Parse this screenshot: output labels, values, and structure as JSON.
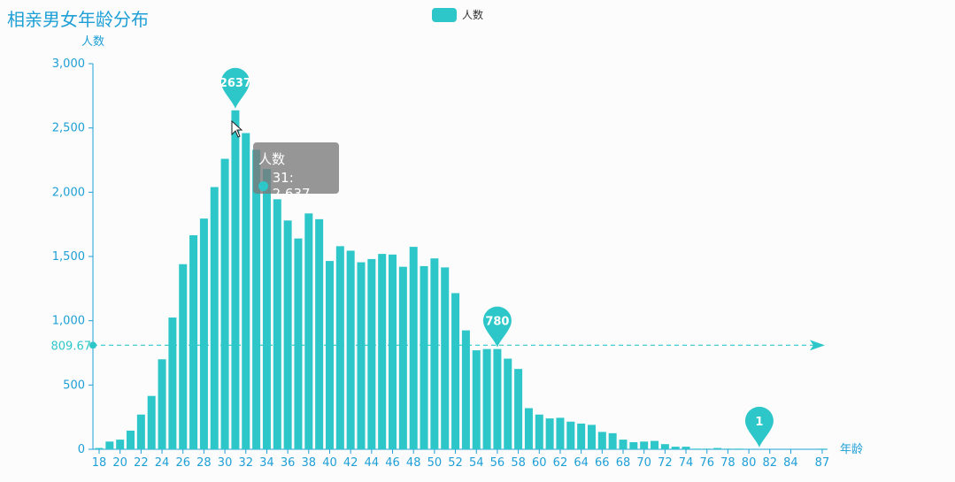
{
  "chart_data": {
    "type": "bar",
    "title": "相亲男女年龄分布",
    "xlabel": "年龄",
    "ylabel": "人数",
    "ylim": [
      0,
      3000
    ],
    "yticks": [
      "0",
      "500",
      "1,000",
      "1,500",
      "2,000",
      "2,500",
      "3,000"
    ],
    "xtick_labels": [
      "18",
      "20",
      "22",
      "24",
      "26",
      "28",
      "30",
      "32",
      "34",
      "36",
      "38",
      "40",
      "42",
      "44",
      "46",
      "48",
      "50",
      "52",
      "54",
      "56",
      "58",
      "60",
      "62",
      "64",
      "66",
      "68",
      "70",
      "72",
      "74",
      "76",
      "78",
      "80",
      "82",
      "84",
      "87"
    ],
    "categories": [
      18,
      19,
      20,
      21,
      22,
      23,
      24,
      25,
      26,
      27,
      28,
      29,
      30,
      31,
      32,
      33,
      34,
      35,
      36,
      37,
      38,
      39,
      40,
      41,
      42,
      43,
      44,
      45,
      46,
      47,
      48,
      49,
      50,
      51,
      52,
      53,
      54,
      55,
      56,
      57,
      58,
      59,
      60,
      61,
      62,
      63,
      64,
      65,
      66,
      67,
      68,
      69,
      70,
      71,
      72,
      73,
      74,
      75,
      76,
      77,
      78,
      79,
      80,
      81,
      82,
      83,
      84,
      85,
      86,
      87
    ],
    "series": [
      {
        "name": "人数",
        "values": [
          10,
          60,
          75,
          145,
          270,
          415,
          700,
          1025,
          1440,
          1665,
          1795,
          2040,
          2260,
          2637,
          2460,
          2330,
          2180,
          1945,
          1780,
          1640,
          1835,
          1790,
          1465,
          1580,
          1545,
          1455,
          1480,
          1520,
          1515,
          1420,
          1575,
          1425,
          1485,
          1415,
          1215,
          925,
          770,
          780,
          780,
          705,
          625,
          320,
          270,
          240,
          245,
          215,
          200,
          190,
          135,
          125,
          75,
          55,
          60,
          65,
          40,
          20,
          20,
          5,
          5,
          10,
          5,
          5,
          2,
          1,
          0,
          0,
          0,
          0,
          0,
          5
        ]
      }
    ],
    "mark_points": [
      {
        "label": "2637",
        "x": 31,
        "y": 2637
      },
      {
        "label": "780",
        "x": 56,
        "y": 780
      },
      {
        "label": "1",
        "x": 81,
        "y": 1
      }
    ],
    "mark_line": {
      "label": "809.67",
      "value": 809.67
    },
    "legend": {
      "label": "人数",
      "position": "top-center"
    },
    "tooltip": {
      "series": "人数",
      "text": "31: 2,637"
    },
    "color": "#2ec7c9",
    "axis_color": "#1e9fd6"
  }
}
